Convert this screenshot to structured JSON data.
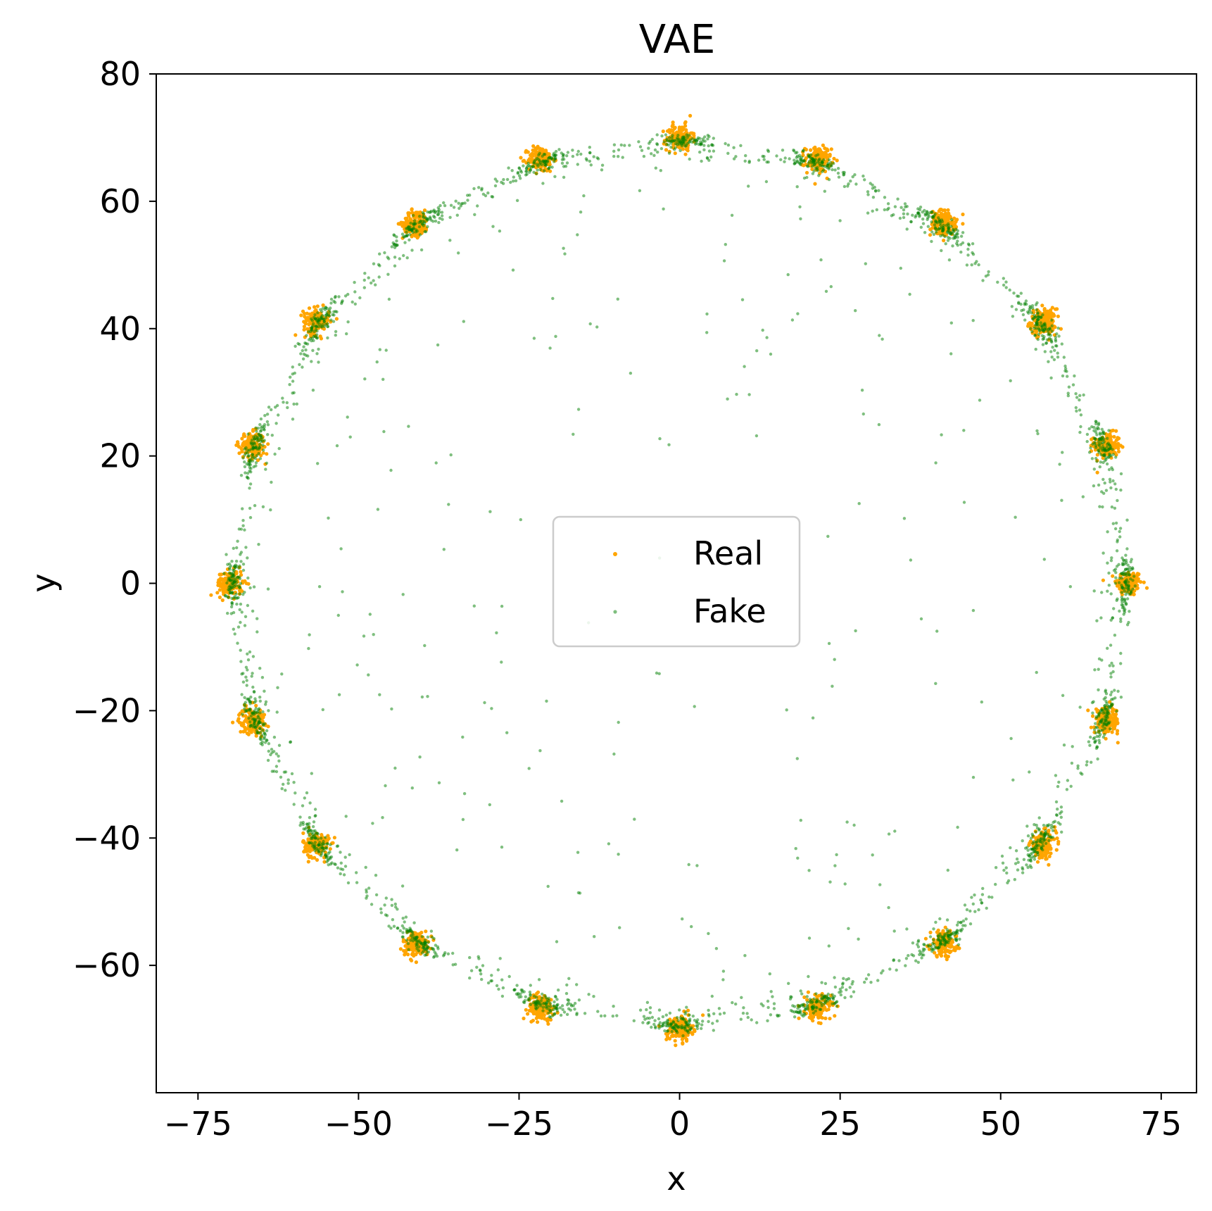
{
  "chart_data": {
    "type": "scatter",
    "title": "VAE",
    "xlabel": "x",
    "ylabel": "y",
    "xlim": [
      -81.5,
      80.5
    ],
    "ylim": [
      -80,
      80
    ],
    "xticks": [
      -75,
      -50,
      -25,
      0,
      25,
      50,
      75
    ],
    "xtick_labels": [
      "−75",
      "−50",
      "−25",
      "0",
      "25",
      "50",
      "75"
    ],
    "yticks": [
      -60,
      -40,
      -20,
      0,
      20,
      40,
      60,
      80
    ],
    "ytick_labels": [
      "−60",
      "−40",
      "−20",
      "0",
      "20",
      "40",
      "60",
      "80"
    ],
    "grid": false,
    "legend": {
      "placement": "center"
    },
    "series": [
      {
        "name": "Real",
        "color": "#FFA500",
        "description_centers": "20 Gaussian clusters evenly spaced on a circle of radius 70",
        "cluster_centers": [
          [
            70.0,
            0.0
          ],
          [
            66.6,
            21.6
          ],
          [
            56.6,
            41.1
          ],
          [
            41.1,
            56.6
          ],
          [
            21.6,
            66.6
          ],
          [
            0.0,
            70.0
          ],
          [
            -21.6,
            66.6
          ],
          [
            -41.1,
            56.6
          ],
          [
            -56.6,
            41.1
          ],
          [
            -66.6,
            21.6
          ],
          [
            -70.0,
            0.0
          ],
          [
            -66.6,
            -21.6
          ],
          [
            -56.6,
            -41.1
          ],
          [
            -41.1,
            -56.6
          ],
          [
            -21.6,
            -66.6
          ],
          [
            0.0,
            -70.0
          ],
          [
            21.6,
            -66.6
          ],
          [
            41.1,
            -56.6
          ],
          [
            56.6,
            -41.1
          ],
          [
            66.6,
            -21.6
          ]
        ],
        "cluster_std": 1.0,
        "points_per_cluster": 150
      },
      {
        "name": "Fake",
        "color": "#008000",
        "alpha": 0.5,
        "ring_radius": 69.5,
        "ring_spread": 1.2,
        "cluster_points_per_mode": 90,
        "ring_points": 900,
        "interior_points": 260
      }
    ]
  },
  "colors": {
    "real": "#FFA500",
    "fake": "#008000",
    "axes": "#000000",
    "legend_border": "#cccccc"
  }
}
